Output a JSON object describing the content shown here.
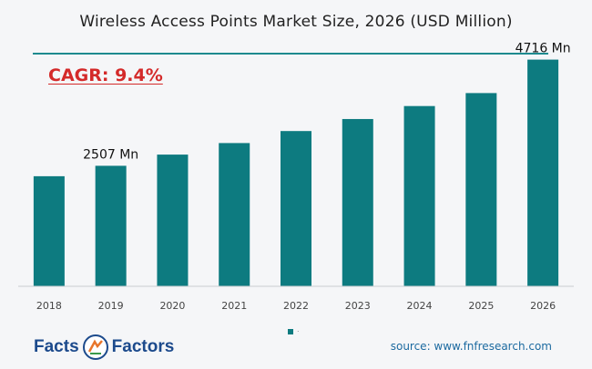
{
  "chart_data": {
    "type": "bar",
    "title": "Wireless Access Points Market Size, 2026 (USD Million)",
    "categories": [
      "2018",
      "2019",
      "2020",
      "2021",
      "2022",
      "2023",
      "2024",
      "2025",
      "2026"
    ],
    "values": [
      2290,
      2507,
      2740,
      2980,
      3230,
      3480,
      3750,
      4020,
      4716
    ],
    "data_labels": [
      {
        "category": "2019",
        "text": "2507 Mn"
      },
      {
        "category": "2026",
        "text": "4716 Mn"
      }
    ],
    "ylim": [
      0,
      5200
    ],
    "grid": false,
    "legend": "bottom-center",
    "bar_color": "#0d7b80"
  },
  "annotations": {
    "cagr": "CAGR: 9.4%"
  },
  "legend": {
    "label": "."
  },
  "branding": {
    "logo_left": "Facts",
    "logo_right": "Factors",
    "source": "source: www.fnfresearch.com"
  },
  "colors": {
    "accent": "#1d8a8f",
    "bar": "#0d7b80",
    "cagr": "#d42a2a",
    "logo": "#1c4a8c"
  }
}
